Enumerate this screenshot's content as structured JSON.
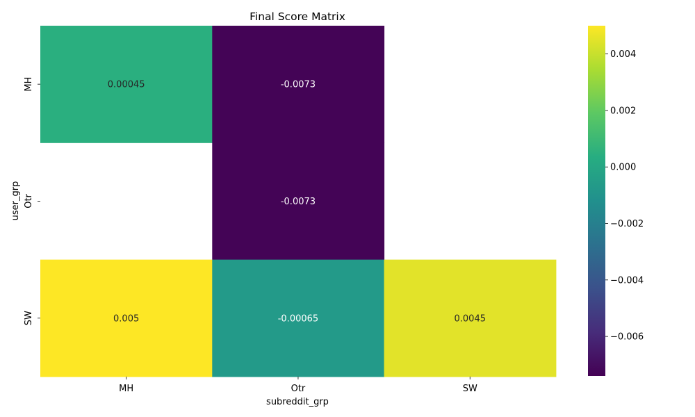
{
  "chart_data": {
    "type": "heatmap",
    "title": "Final Score Matrix",
    "xlabel": "subreddit_grp",
    "ylabel": "user_grp",
    "x_categories": [
      "MH",
      "Otr",
      "SW"
    ],
    "y_categories": [
      "MH",
      "Otr",
      "SW"
    ],
    "values": [
      [
        0.00045,
        -0.0073,
        null
      ],
      [
        null,
        -0.0073,
        null
      ],
      [
        0.005,
        -0.00065,
        0.0045
      ]
    ],
    "cell_labels": [
      [
        "0.00045",
        "-0.0073",
        ""
      ],
      [
        "",
        "-0.0073",
        ""
      ],
      [
        "0.005",
        "-0.00065",
        "0.0045"
      ]
    ],
    "colormap": "viridis",
    "vmin": -0.0074,
    "vmax": 0.005,
    "colorbar_ticks": [
      0.004,
      0.002,
      0.0,
      -0.002,
      -0.004,
      -0.006
    ],
    "colorbar_tick_labels": [
      "0.004",
      "0.002",
      "0.000",
      "−0.002",
      "−0.004",
      "−0.006"
    ]
  }
}
